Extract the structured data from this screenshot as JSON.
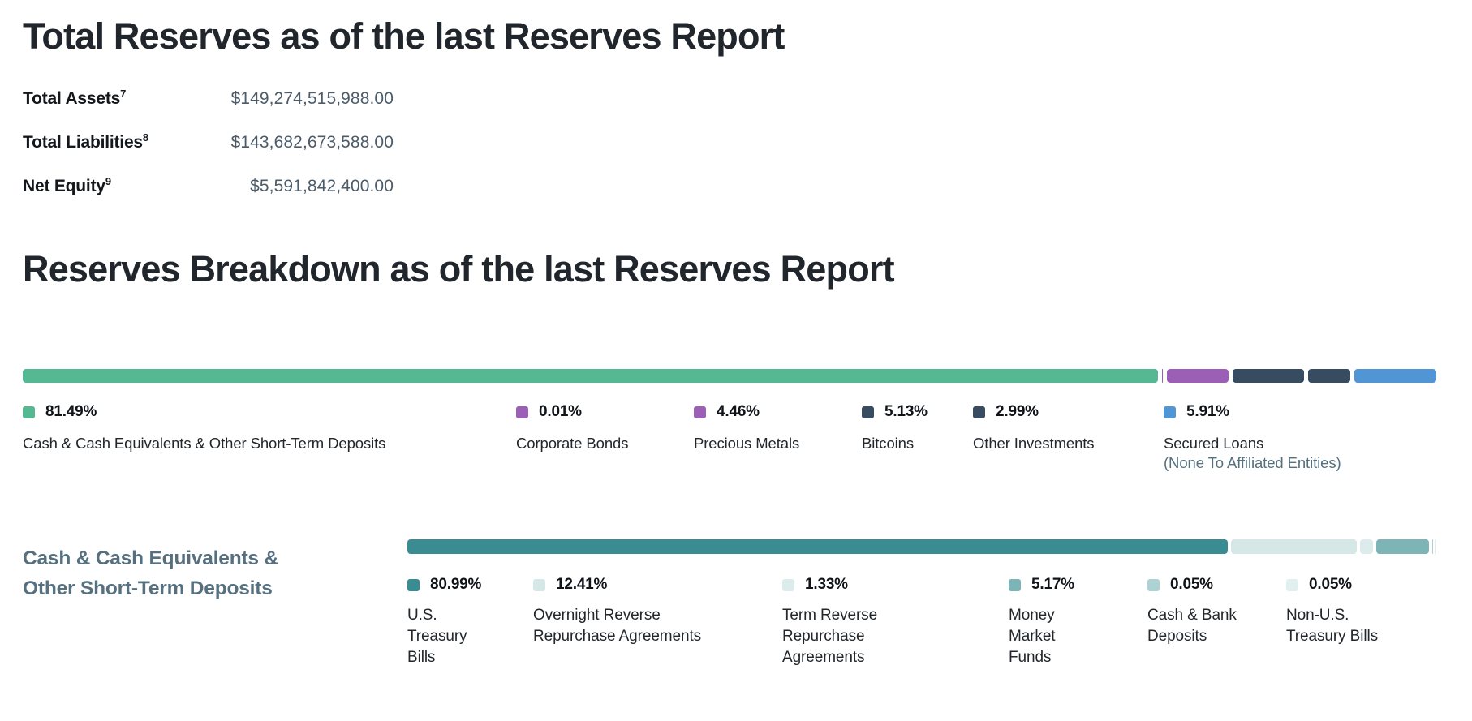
{
  "totals": {
    "title": "Total Reserves as of the last Reserves Report",
    "rows": [
      {
        "label": "Total Assets",
        "footnote": "7",
        "value": "$149,274,515,988.00"
      },
      {
        "label": "Total Liabilities",
        "footnote": "8",
        "value": "$143,682,673,588.00"
      },
      {
        "label": "Net Equity",
        "footnote": "9",
        "value": "$5,591,842,400.00"
      }
    ]
  },
  "breakdown": {
    "title": "Reserves Breakdown as of the last Reserves Report"
  },
  "colors": {
    "heading": "#21262c",
    "stat_value": "#4c5c6a",
    "sublabel_gray": "#54707e",
    "section2_title": "#56707f"
  },
  "chart_data": [
    {
      "type": "bar",
      "orientation": "horizontal-stacked",
      "title": "Reserves Breakdown as of the last Reserves Report",
      "unit": "%",
      "segments": [
        {
          "label": "Cash & Cash Equivalents & Other Short-Term Deposits",
          "value": 81.49,
          "pct_label": "81.49%",
          "color": "#54b892"
        },
        {
          "label": "Corporate Bonds",
          "value": 0.01,
          "pct_label": "0.01%",
          "color": "#9b5fb5"
        },
        {
          "label": "Precious Metals",
          "value": 4.46,
          "pct_label": "4.46%",
          "color": "#9b5fb5"
        },
        {
          "label": "Bitcoins",
          "value": 5.13,
          "pct_label": "5.13%",
          "color": "#374b61"
        },
        {
          "label": "Other Investments",
          "value": 2.99,
          "pct_label": "2.99%",
          "color": "#374b61"
        },
        {
          "label": "Secured Loans",
          "sublabel": "(None To Affiliated Entities)",
          "value": 5.91,
          "pct_label": "5.91%",
          "color": "#5295d5"
        }
      ]
    },
    {
      "type": "bar",
      "orientation": "horizontal-stacked",
      "title": "Cash & Cash Equivalents &\nOther Short-Term Deposits",
      "unit": "%",
      "segments": [
        {
          "label": "U.S.\nTreasury\nBills",
          "value": 80.99,
          "pct_label": "80.99%",
          "color": "#398d92"
        },
        {
          "label": "Overnight Reverse\nRepurchase Agreements",
          "value": 12.41,
          "pct_label": "12.41%",
          "color": "#d6e7e7"
        },
        {
          "label": "Term Reverse\nRepurchase\nAgreements",
          "value": 1.33,
          "pct_label": "1.33%",
          "color": "#dcebeb"
        },
        {
          "label": "Money\nMarket\nFunds",
          "value": 5.17,
          "pct_label": "5.17%",
          "color": "#7db4b6"
        },
        {
          "label": "Cash & Bank\nDeposits",
          "value": 0.05,
          "pct_label": "0.05%",
          "color": "#aed2d3"
        },
        {
          "label": "Non-U.S.\nTreasury Bills",
          "value": 0.05,
          "pct_label": "0.05%",
          "color": "#e2efef"
        }
      ]
    }
  ]
}
